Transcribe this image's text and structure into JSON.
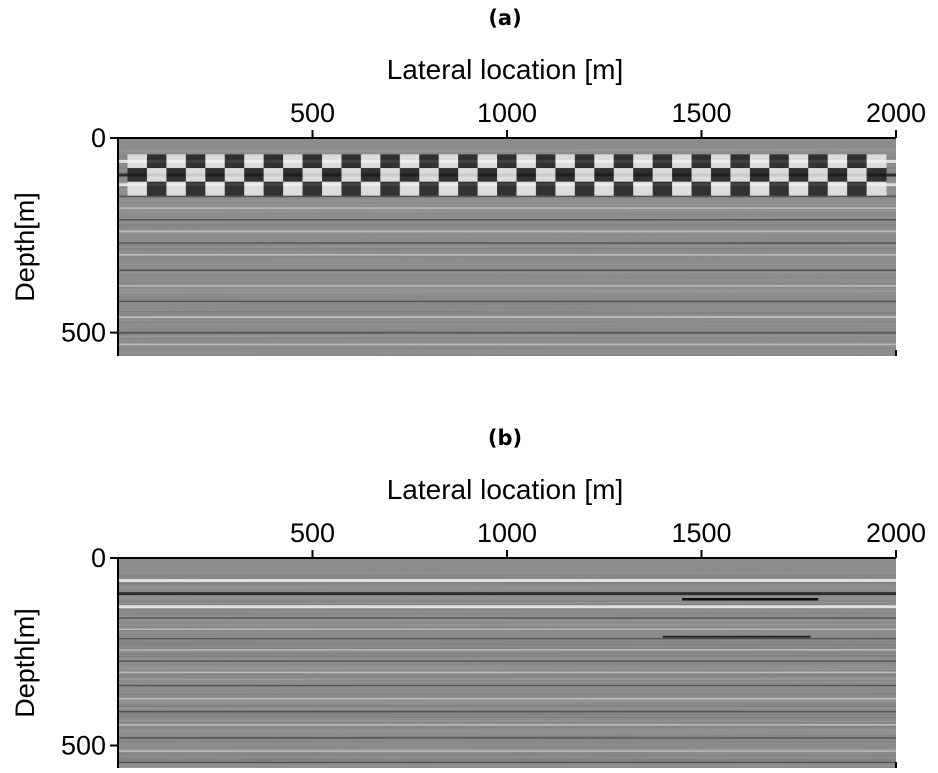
{
  "chart_data": [
    {
      "type": "heatmap",
      "panel_label": "(a)",
      "xlabel": "Lateral location [m]",
      "ylabel": "Depth[m]",
      "xlim": [
        0,
        2000
      ],
      "ylim": [
        0,
        560
      ],
      "xticks": [
        500,
        1000,
        1500,
        2000
      ],
      "xtick_labels": [
        "500",
        "1000",
        "1500",
        "2000"
      ],
      "yticks": [
        0,
        500
      ],
      "ytick_labels": [
        "0",
        "500"
      ],
      "x_axis_position": "top",
      "colormap": "grayscale",
      "reflectors_depth_m": [
        60,
        95,
        120,
        150,
        180,
        210,
        240,
        270,
        300,
        340,
        380,
        420,
        460,
        500,
        530
      ],
      "grid": false
    },
    {
      "type": "heatmap",
      "panel_label": "(b)",
      "xlabel": "Lateral location [m]",
      "ylabel": "Depth[m]",
      "xlim": [
        0,
        2000
      ],
      "ylim": [
        0,
        560
      ],
      "xticks": [
        500,
        1000,
        1500,
        2000
      ],
      "xtick_labels": [
        "500",
        "1000",
        "1500",
        "2000"
      ],
      "yticks": [
        0,
        500
      ],
      "ytick_labels": [
        "0",
        "500"
      ],
      "x_axis_position": "top",
      "colormap": "grayscale",
      "reflectors_depth_m": [
        60,
        95,
        130,
        160,
        190,
        215,
        245,
        275,
        305,
        340,
        375,
        410,
        445,
        480,
        515,
        545
      ],
      "grid": false
    }
  ]
}
